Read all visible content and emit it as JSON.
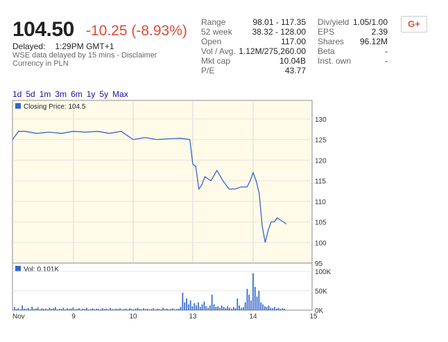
{
  "quote": {
    "price": "104.50",
    "change": "-10.25 (-8.93%)",
    "delayed_label": "Delayed:",
    "time": "1:29PM GMT+1",
    "disclaimer": "WSE data delayed by 15 mins - Disclaimer",
    "currency": "Currency in PLN"
  },
  "stats_col1": [
    {
      "label": "Range",
      "value": "98.01 - 117.35"
    },
    {
      "label": "52 week",
      "value": "38.32 - 128.00"
    },
    {
      "label": "Open",
      "value": "117.00"
    },
    {
      "label": "Vol / Avg.",
      "value": "1.12M/275,260.00"
    },
    {
      "label": "Mkt cap",
      "value": "10.04B"
    },
    {
      "label": "P/E",
      "value": "43.77"
    }
  ],
  "stats_col2": [
    {
      "label": "Div/yield",
      "value": "1.05/1.00"
    },
    {
      "label": "EPS",
      "value": "2.39"
    },
    {
      "label": "Shares",
      "value": "96.12M"
    },
    {
      "label": "Beta",
      "value": "-"
    },
    {
      "label": "Inst. own",
      "value": "-"
    }
  ],
  "share_button": {
    "label": "G+",
    "icon": "google-plus-icon"
  },
  "range_links": [
    "1d",
    "5d",
    "1m",
    "3m",
    "6m",
    "1y",
    "5y",
    "Max"
  ],
  "chart_data": [
    {
      "type": "line",
      "legend": "Closing Price: 104.5",
      "x_ticks": [
        "Nov",
        "9",
        "10",
        "13",
        "14",
        "15"
      ],
      "y_ticks": [
        95,
        100,
        105,
        110,
        115,
        120,
        125,
        130
      ],
      "ylim": [
        95,
        132
      ],
      "series": [
        {
          "name": "Closing Price",
          "color": "#3366cc",
          "x": [
            0,
            0.1,
            0.2,
            0.4,
            0.6,
            0.8,
            1.0,
            1.2,
            1.4,
            1.6,
            1.8,
            1.9,
            2.0,
            2.2,
            2.4,
            2.6,
            2.8,
            2.95,
            3.0,
            3.05,
            3.1,
            3.15,
            3.2,
            3.3,
            3.4,
            3.5,
            3.6,
            3.7,
            3.8,
            3.9,
            3.95,
            4.0,
            4.05,
            4.1,
            4.15,
            4.2,
            4.25,
            4.3,
            4.35,
            4.4,
            4.45,
            4.5,
            4.55
          ],
          "y": [
            125,
            127,
            127,
            126.5,
            126.8,
            126.5,
            127,
            126.8,
            127,
            126.5,
            127,
            126,
            125,
            125.5,
            125,
            125.2,
            125.3,
            125,
            119,
            118.5,
            113,
            114,
            116,
            115,
            117.5,
            115,
            113,
            113,
            113.5,
            113.5,
            115,
            117,
            115,
            112,
            104,
            100,
            103,
            105,
            105,
            106,
            105.5,
            105,
            104.5
          ]
        }
      ]
    },
    {
      "type": "bar",
      "legend": "Vol: 0.101K",
      "x_ticks": [
        "Nov",
        "9",
        "10",
        "13",
        "14",
        "15"
      ],
      "y_ticks": [
        "0K",
        "50K",
        "100K"
      ],
      "ylim": [
        0,
        100000
      ],
      "color": "#3366cc",
      "values": [
        8000,
        3000,
        5000,
        2000,
        12000,
        4000,
        3000,
        6000,
        2000,
        9000,
        3000,
        4000,
        7000,
        2000,
        5000,
        3000,
        4000,
        2000,
        6000,
        3000,
        5000,
        8000,
        2000,
        4000,
        3000,
        6000,
        2000,
        5000,
        3000,
        4000,
        7000,
        2000,
        3000,
        5000,
        2000,
        4000,
        3000,
        6000,
        2000,
        3000,
        5000,
        2000,
        4000,
        3000,
        2000,
        5000,
        3000,
        4000,
        2000,
        6000,
        3000,
        2000,
        4000,
        3000,
        5000,
        2000,
        3000,
        4000,
        2000,
        5000,
        3000,
        2000,
        4000,
        6000,
        3000,
        2000,
        5000,
        3000,
        4000,
        2000,
        3000,
        5000,
        2000,
        4000,
        3000,
        2000,
        6000,
        3000,
        4000,
        2000,
        3000,
        5000,
        2000,
        3000,
        4000,
        8000,
        45000,
        20000,
        30000,
        15000,
        25000,
        10000,
        18000,
        12000,
        20000,
        8000,
        15000,
        22000,
        10000,
        6000,
        12000,
        40000,
        15000,
        8000,
        10000,
        6000,
        12000,
        8000,
        5000,
        10000,
        6000,
        4000,
        8000,
        5000,
        30000,
        12000,
        6000,
        8000,
        20000,
        55000,
        40000,
        25000,
        95000,
        60000,
        35000,
        50000,
        20000,
        15000,
        10000,
        8000,
        12000,
        6000,
        5000,
        8000,
        4000,
        6000,
        3000,
        5000,
        4000
      ]
    }
  ]
}
